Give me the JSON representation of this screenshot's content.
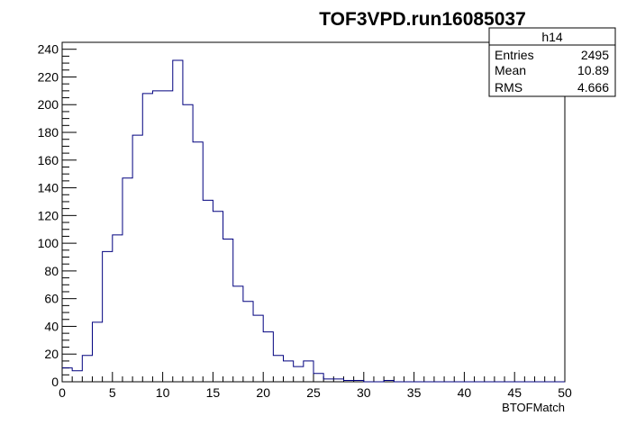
{
  "chart_data": {
    "type": "bar",
    "title": "TOF3VPD.run16085037",
    "xlabel": "BTOFMatch",
    "ylabel": "",
    "xlim": [
      0,
      50
    ],
    "ylim": [
      0,
      245
    ],
    "x_ticks": [
      0,
      5,
      10,
      15,
      20,
      25,
      30,
      35,
      40,
      45,
      50
    ],
    "y_ticks": [
      0,
      20,
      40,
      60,
      80,
      100,
      120,
      140,
      160,
      180,
      200,
      220,
      240
    ],
    "bin_width": 1,
    "bin_low_edges": [
      0,
      1,
      2,
      3,
      4,
      5,
      6,
      7,
      8,
      9,
      10,
      11,
      12,
      13,
      14,
      15,
      16,
      17,
      18,
      19,
      20,
      21,
      22,
      23,
      24,
      25,
      26,
      27,
      28,
      29,
      30,
      31,
      32,
      33,
      34,
      35,
      36,
      37,
      38,
      39,
      40,
      41,
      42,
      43,
      44,
      45,
      46,
      47,
      48,
      49
    ],
    "counts": [
      10,
      8,
      19,
      43,
      94,
      106,
      147,
      178,
      208,
      210,
      210,
      232,
      200,
      173,
      131,
      123,
      103,
      69,
      58,
      48,
      36,
      19,
      15,
      11,
      15,
      6,
      2,
      2,
      1,
      1,
      0,
      0,
      1,
      0,
      0,
      0,
      0,
      0,
      0,
      0,
      0,
      0,
      0,
      0,
      0,
      0,
      0,
      0,
      0,
      0
    ],
    "line_color": "#00007f"
  },
  "stats_box": {
    "name": "h14",
    "rows": [
      {
        "label": "Entries",
        "value": "2495"
      },
      {
        "label": "Mean",
        "value": "10.89"
      },
      {
        "label": "RMS",
        "value": "4.666"
      }
    ]
  }
}
